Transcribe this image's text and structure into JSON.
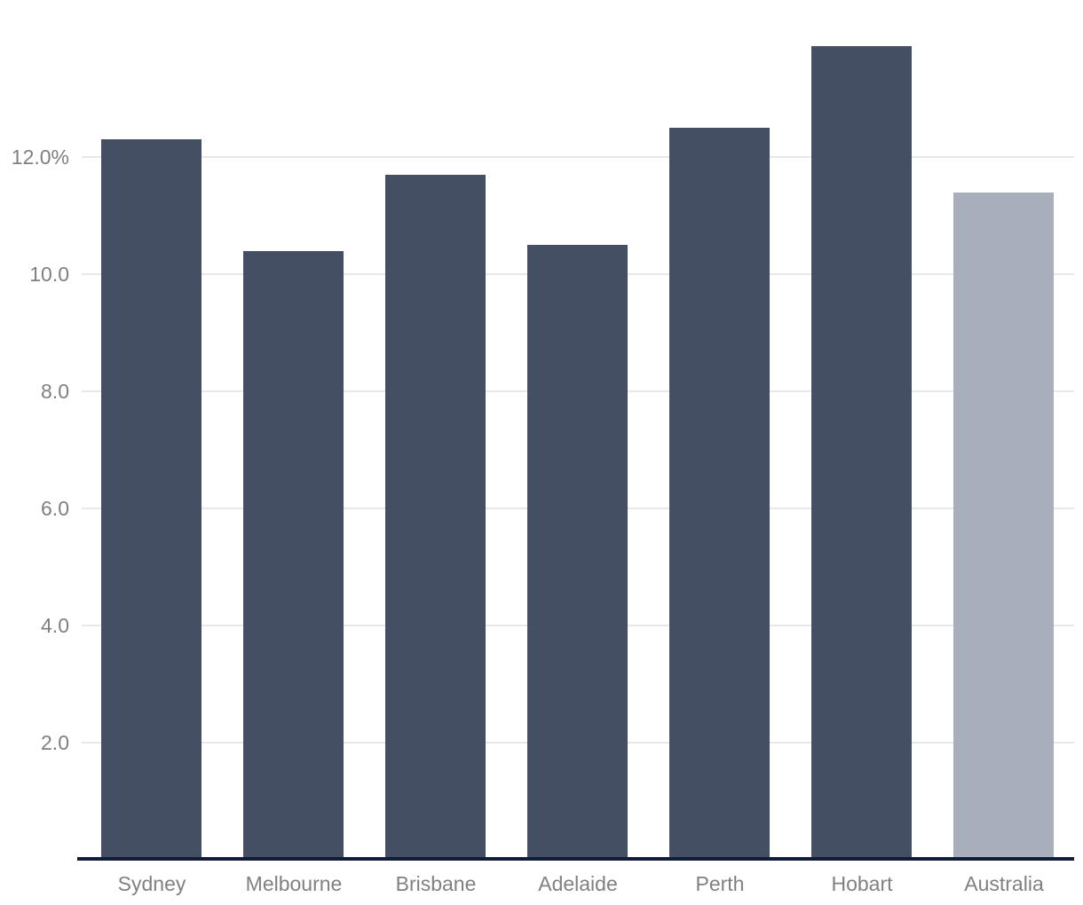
{
  "chart_data": {
    "type": "bar",
    "title": "",
    "xlabel": "",
    "ylabel": "",
    "categories": [
      "Sydney",
      "Melbourne",
      "Brisbane",
      "Adelaide",
      "Perth",
      "Hobart",
      "Australia"
    ],
    "values": [
      12.3,
      10.4,
      11.7,
      10.5,
      12.5,
      13.9,
      11.4
    ],
    "highlight_category": "Australia",
    "yticks": [
      {
        "value": 2,
        "label": "2.0"
      },
      {
        "value": 4,
        "label": "4.0"
      },
      {
        "value": 6,
        "label": "6.0"
      },
      {
        "value": 8,
        "label": "8.0"
      },
      {
        "value": 10,
        "label": "10.0"
      },
      {
        "value": 12,
        "label": "12.0%"
      }
    ],
    "ylim": [
      0,
      14.7
    ],
    "grid": true,
    "legend": false,
    "colors": {
      "bar": "#454f63",
      "highlight_bar": "#a8aebb",
      "axis_line": "#111c38",
      "gridline": "#e8e8ea",
      "tick_label": "#808080",
      "background": "#ffffff"
    }
  }
}
